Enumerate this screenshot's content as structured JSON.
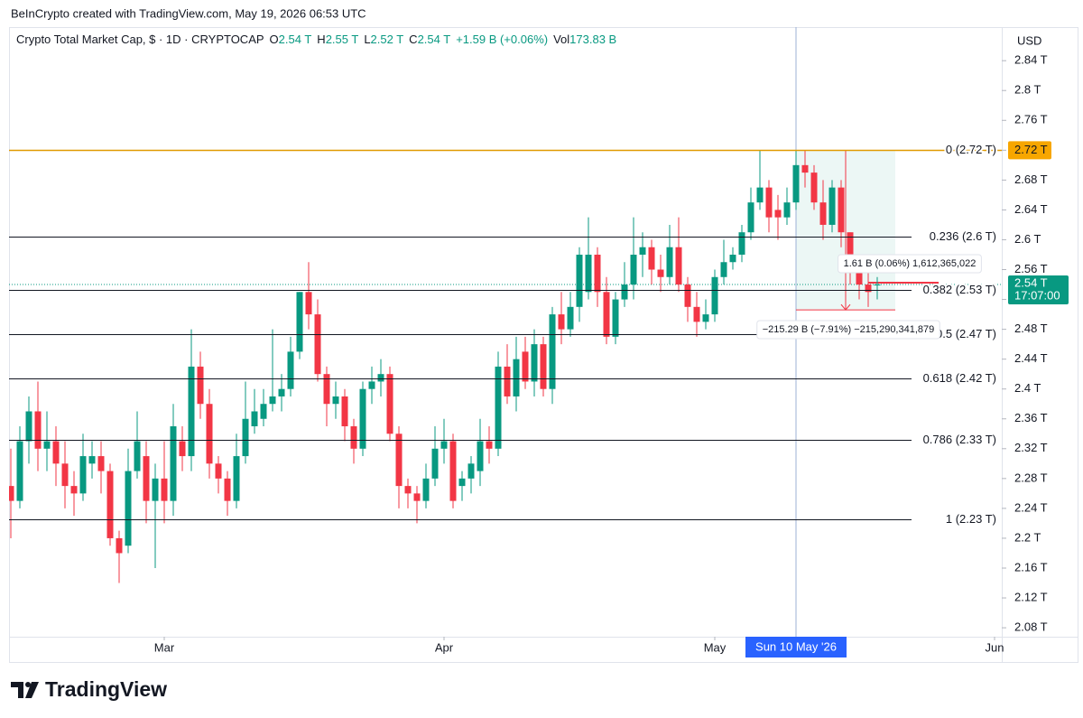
{
  "attribution": "BeInCrypto created with TradingView.com, May 19, 2026 06:53 UTC",
  "brand": "TradingView",
  "chart_data": {
    "type": "candlestick",
    "title": "Crypto Total Market Cap, $ · 1D · CRYPTOCAP",
    "legend_values": [
      {
        "key": "O",
        "value": "2.54 T"
      },
      {
        "key": "H",
        "value": "2.55 T"
      },
      {
        "key": "L",
        "value": "2.52 T"
      },
      {
        "key": "C",
        "value": "2.54 T"
      },
      {
        "value": "+1.59 B (+0.06%)"
      },
      {
        "key": "Vol",
        "value": "173.83 B"
      }
    ],
    "currency": "USD",
    "up_color": "#089981",
    "down_color": "#f23645",
    "x": [
      "2026-02-12",
      "2026-02-13",
      "2026-02-14",
      "2026-02-15",
      "2026-02-16",
      "2026-02-17",
      "2026-02-18",
      "2026-02-19",
      "2026-02-20",
      "2026-02-21",
      "2026-02-22",
      "2026-02-23",
      "2026-02-24",
      "2026-02-25",
      "2026-02-26",
      "2026-02-27",
      "2026-02-28",
      "2026-03-01",
      "2026-03-02",
      "2026-03-03",
      "2026-03-04",
      "2026-03-05",
      "2026-03-06",
      "2026-03-07",
      "2026-03-08",
      "2026-03-09",
      "2026-03-10",
      "2026-03-11",
      "2026-03-12",
      "2026-03-13",
      "2026-03-14",
      "2026-03-15",
      "2026-03-16",
      "2026-03-17",
      "2026-03-18",
      "2026-03-19",
      "2026-03-20",
      "2026-03-21",
      "2026-03-22",
      "2026-03-23",
      "2026-03-24",
      "2026-03-25",
      "2026-03-26",
      "2026-03-27",
      "2026-03-28",
      "2026-03-29",
      "2026-03-30",
      "2026-03-31",
      "2026-04-01",
      "2026-04-02",
      "2026-04-03",
      "2026-04-04",
      "2026-04-05",
      "2026-04-06",
      "2026-04-07",
      "2026-04-08",
      "2026-04-09",
      "2026-04-10",
      "2026-04-11",
      "2026-04-12",
      "2026-04-13",
      "2026-04-14",
      "2026-04-15",
      "2026-04-16",
      "2026-04-17",
      "2026-04-18",
      "2026-04-19",
      "2026-04-20",
      "2026-04-21",
      "2026-04-22",
      "2026-04-23",
      "2026-04-24",
      "2026-04-25",
      "2026-04-26",
      "2026-04-27",
      "2026-04-28",
      "2026-04-29",
      "2026-04-30",
      "2026-05-01",
      "2026-05-02",
      "2026-05-03",
      "2026-05-04",
      "2026-05-05",
      "2026-05-06",
      "2026-05-07",
      "2026-05-08",
      "2026-05-09",
      "2026-05-10",
      "2026-05-11",
      "2026-05-12",
      "2026-05-13",
      "2026-05-14",
      "2026-05-15",
      "2026-05-16",
      "2026-05-17",
      "2026-05-18",
      "2026-05-19"
    ],
    "open": [
      2.27,
      2.25,
      2.33,
      2.37,
      2.32,
      2.33,
      2.3,
      2.27,
      2.26,
      2.3,
      2.31,
      2.29,
      2.2,
      2.19,
      2.29,
      2.31,
      2.25,
      2.28,
      2.25,
      2.33,
      2.31,
      2.43,
      2.38,
      2.3,
      2.28,
      2.25,
      2.31,
      2.35,
      2.36,
      2.38,
      2.39,
      2.4,
      2.45,
      2.53,
      2.5,
      2.42,
      2.38,
      2.39,
      2.35,
      2.32,
      2.4,
      2.41,
      2.42,
      2.34,
      2.27,
      2.26,
      2.25,
      2.28,
      2.32,
      2.33,
      2.27,
      2.28,
      2.29,
      2.33,
      2.32,
      2.43,
      2.39,
      2.45,
      2.41,
      2.46,
      2.4,
      2.5,
      2.48,
      2.51,
      2.53,
      2.58,
      2.53,
      2.47,
      2.52,
      2.54,
      2.58,
      2.59,
      2.56,
      2.55,
      2.59,
      2.54,
      2.51,
      2.49,
      2.5,
      2.55,
      2.57,
      2.58,
      2.61,
      2.65,
      2.67,
      2.64,
      2.63,
      2.65,
      2.7,
      2.69,
      2.65,
      2.62,
      2.67,
      2.61,
      2.57,
      2.54,
      2.54
    ],
    "high": [
      2.32,
      2.35,
      2.39,
      2.41,
      2.37,
      2.35,
      2.33,
      2.29,
      2.34,
      2.33,
      2.33,
      2.3,
      2.21,
      2.32,
      2.37,
      2.33,
      2.3,
      2.33,
      2.38,
      2.35,
      2.48,
      2.45,
      2.4,
      2.31,
      2.29,
      2.34,
      2.41,
      2.4,
      2.4,
      2.48,
      2.42,
      2.47,
      2.53,
      2.57,
      2.52,
      2.43,
      2.41,
      2.4,
      2.36,
      2.41,
      2.43,
      2.44,
      2.43,
      2.35,
      2.28,
      2.27,
      2.3,
      2.35,
      2.36,
      2.34,
      2.29,
      2.31,
      2.36,
      2.35,
      2.45,
      2.46,
      2.47,
      2.47,
      2.48,
      2.47,
      2.51,
      2.53,
      2.53,
      2.59,
      2.63,
      2.59,
      2.55,
      2.53,
      2.57,
      2.63,
      2.61,
      2.6,
      2.58,
      2.62,
      2.63,
      2.55,
      2.53,
      2.52,
      2.56,
      2.6,
      2.59,
      2.62,
      2.67,
      2.72,
      2.68,
      2.66,
      2.67,
      2.72,
      2.72,
      2.7,
      2.68,
      2.68,
      2.68,
      2.61,
      2.58,
      2.56,
      2.55
    ],
    "low": [
      2.2,
      2.24,
      2.3,
      2.29,
      2.29,
      2.27,
      2.24,
      2.23,
      2.25,
      2.28,
      2.26,
      2.19,
      2.14,
      2.18,
      2.28,
      2.22,
      2.16,
      2.22,
      2.23,
      2.29,
      2.29,
      2.36,
      2.28,
      2.26,
      2.23,
      2.24,
      2.3,
      2.34,
      2.35,
      2.37,
      2.37,
      2.39,
      2.44,
      2.48,
      2.41,
      2.35,
      2.36,
      2.33,
      2.3,
      2.31,
      2.38,
      2.39,
      2.33,
      2.24,
      2.24,
      2.22,
      2.24,
      2.27,
      2.3,
      2.24,
      2.25,
      2.26,
      2.27,
      2.3,
      2.31,
      2.38,
      2.37,
      2.4,
      2.39,
      2.39,
      2.38,
      2.46,
      2.47,
      2.49,
      2.52,
      2.51,
      2.46,
      2.46,
      2.51,
      2.52,
      2.55,
      2.54,
      2.53,
      2.54,
      2.53,
      2.49,
      2.47,
      2.48,
      2.49,
      2.54,
      2.56,
      2.57,
      2.6,
      2.64,
      2.61,
      2.6,
      2.62,
      2.64,
      2.67,
      2.64,
      2.6,
      2.61,
      2.59,
      2.54,
      2.52,
      2.51,
      2.52
    ],
    "close": [
      2.25,
      2.33,
      2.37,
      2.32,
      2.33,
      2.3,
      2.27,
      2.26,
      2.31,
      2.31,
      2.29,
      2.2,
      2.18,
      2.29,
      2.33,
      2.25,
      2.28,
      2.25,
      2.35,
      2.31,
      2.43,
      2.38,
      2.3,
      2.28,
      2.25,
      2.31,
      2.36,
      2.37,
      2.38,
      2.39,
      2.4,
      2.45,
      2.53,
      2.5,
      2.42,
      2.38,
      2.39,
      2.35,
      2.32,
      2.4,
      2.41,
      2.42,
      2.34,
      2.27,
      2.26,
      2.25,
      2.28,
      2.32,
      2.33,
      2.25,
      2.28,
      2.3,
      2.33,
      2.32,
      2.43,
      2.39,
      2.44,
      2.41,
      2.46,
      2.4,
      2.5,
      2.48,
      2.51,
      2.58,
      2.58,
      2.53,
      2.47,
      2.52,
      2.54,
      2.58,
      2.59,
      2.56,
      2.55,
      2.59,
      2.54,
      2.51,
      2.49,
      2.5,
      2.55,
      2.57,
      2.58,
      2.61,
      2.65,
      2.67,
      2.63,
      2.63,
      2.65,
      2.7,
      2.69,
      2.65,
      2.62,
      2.67,
      2.61,
      2.57,
      2.54,
      2.53,
      2.54
    ],
    "xlim": [
      "2026-02-12",
      "2026-06-02"
    ],
    "xticks": [
      {
        "value": "2026-03-01",
        "label": "Mar"
      },
      {
        "value": "2026-04-01",
        "label": "Apr"
      },
      {
        "value": "2026-05-01",
        "label": "May"
      },
      {
        "value": "2026-06-01",
        "label": "Jun"
      }
    ],
    "ylim": [
      2.068,
      2.885
    ],
    "yticks": [
      {
        "value": 2.08,
        "label": "2.08 T"
      },
      {
        "value": 2.12,
        "label": "2.12 T"
      },
      {
        "value": 2.16,
        "label": "2.16 T"
      },
      {
        "value": 2.2,
        "label": "2.2 T"
      },
      {
        "value": 2.24,
        "label": "2.24 T"
      },
      {
        "value": 2.28,
        "label": "2.28 T"
      },
      {
        "value": 2.32,
        "label": "2.32 T"
      },
      {
        "value": 2.36,
        "label": "2.36 T"
      },
      {
        "value": 2.4,
        "label": "2.4 T"
      },
      {
        "value": 2.44,
        "label": "2.44 T"
      },
      {
        "value": 2.48,
        "label": "2.48 T"
      },
      {
        "value": 2.52,
        "label": "2.52 T"
      },
      {
        "value": 2.56,
        "label": "2.56 T"
      },
      {
        "value": 2.6,
        "label": "2.6 T"
      },
      {
        "value": 2.64,
        "label": "2.64 T"
      },
      {
        "value": 2.68,
        "label": "2.68 T"
      },
      {
        "value": 2.72,
        "label": "2.72 T"
      },
      {
        "value": 2.76,
        "label": "2.76 T"
      },
      {
        "value": 2.8,
        "label": "2.8 T"
      },
      {
        "value": 2.84,
        "label": "2.84 T"
      }
    ],
    "fib_levels": [
      {
        "label": "0 (2.72 T)",
        "price": 2.72
      },
      {
        "label": "0.236 (2.6 T)",
        "price": 2.604
      },
      {
        "label": "0.382 (2.53 T)",
        "price": 2.533
      },
      {
        "label": "0.5 (2.47 T)",
        "price": 2.473
      },
      {
        "label": "0.618 (2.42 T)",
        "price": 2.414
      },
      {
        "label": "0.786 (2.33 T)",
        "price": 2.332
      },
      {
        "label": "1 (2.23 T)",
        "price": 2.225
      }
    ],
    "top_tag": {
      "value": 2.72,
      "label": "2.72 T"
    },
    "last_price": {
      "value": 2.54,
      "label": "2.54 T",
      "countdown": "17:07:00"
    },
    "crosshair": {
      "x": "2026-05-10",
      "label": "Sun 10 May '26"
    },
    "measure": {
      "from": "2026-05-10",
      "to": "2026-05-21",
      "top": 2.72,
      "bottom": 2.506
    },
    "annotations": [
      "1.61 B (0.06%) 1,612,365,022",
      "−215.29 B (−7.91%) −215,290,341,879"
    ]
  }
}
